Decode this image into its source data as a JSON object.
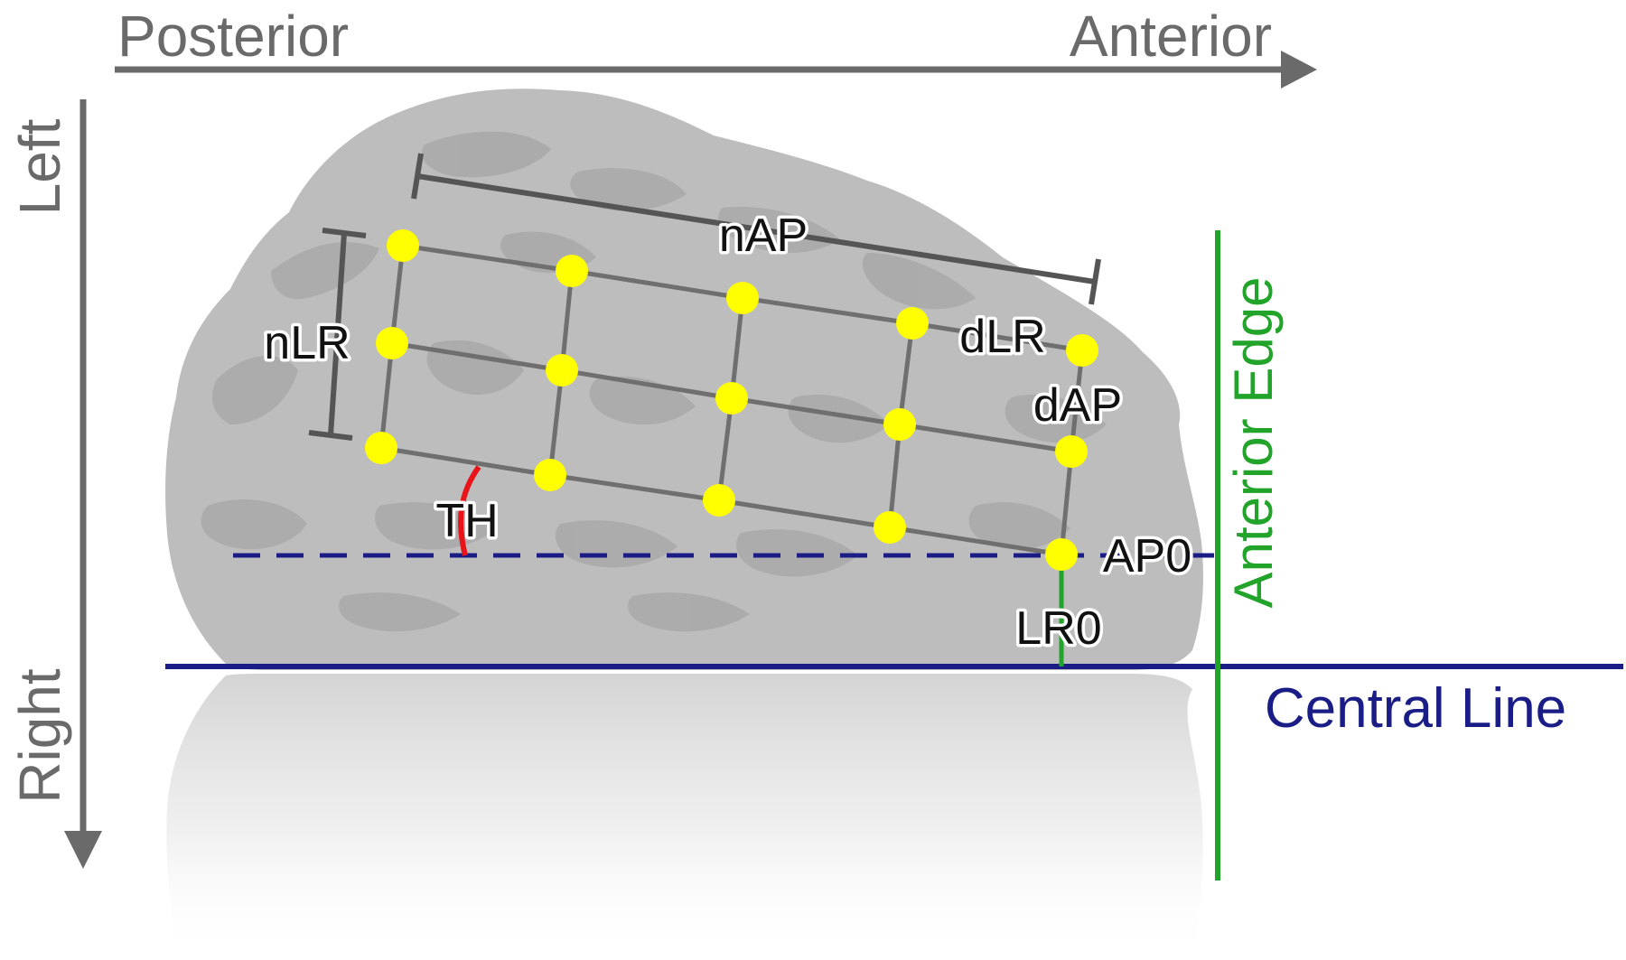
{
  "axes": {
    "posterior": "Posterior",
    "anterior": "Anterior",
    "left": "Left",
    "right": "Right"
  },
  "labels": {
    "nAP": "nAP",
    "nLR": "nLR",
    "dLR": "dLR",
    "dAP": "dAP",
    "TH": "TH",
    "AP0": "AP0",
    "LR0": "LR0",
    "anterior_edge": "Anterior Edge",
    "central_line": "Central Line"
  },
  "colors": {
    "axis_gray": "#6a6a6a",
    "brain_gray": "#bdbdbd",
    "sulci_gray": "#a9a9a9",
    "grid_gray": "#6f6f6f",
    "marker_yellow": "#ffff00",
    "anterior_edge_green": "#22a32a",
    "central_line_blue": "#1b1d86",
    "angle_red": "#e8141a"
  },
  "grid": {
    "rows": 3,
    "columns": 5,
    "point_count": 15
  }
}
